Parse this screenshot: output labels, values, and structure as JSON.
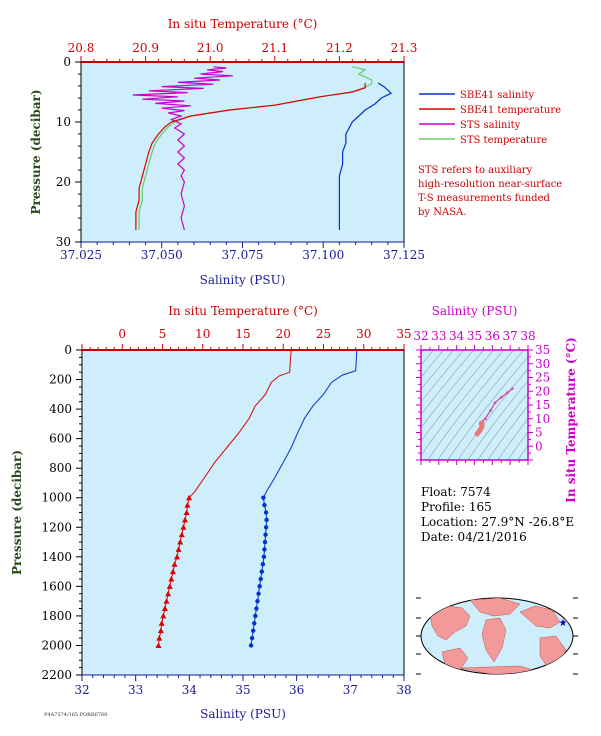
{
  "colors": {
    "plot_bg": "#cdeefa",
    "salinity_axis": "#1a1a99",
    "temperature_axis": "#cc0000",
    "pressure_axis": "#2a4a1a",
    "ts_axis": "#cc00cc",
    "sbe_salinity": "#0033cc",
    "sbe_temperature": "#dd0000",
    "sts_salinity": "#cc00cc",
    "sts_temperature": "#66cc66"
  },
  "footer": {
    "code": "P4A7574/165 PORB6768"
  },
  "info": {
    "float": "Float:  7574",
    "profile": "Profile:  165",
    "location": "Location:  27.9°N  -26.8°E",
    "date": "Date:  04/21/2016"
  },
  "legend": {
    "items": [
      {
        "label": "SBE41 salinity",
        "color": "#0033cc"
      },
      {
        "label": "SBE41 temperature",
        "color": "#dd0000"
      },
      {
        "label": "STS salinity",
        "color": "#cc00cc"
      },
      {
        "label": "STS temperature",
        "color": "#66cc66"
      }
    ],
    "note": [
      "STS refers to auxiliary",
      "high-resolution near-surface",
      "T-S measurements funded",
      "by NASA."
    ]
  },
  "chart_data": [
    {
      "id": "near-surface",
      "type": "line",
      "title": "",
      "top_axis_label": "In situ Temperature (°C)",
      "bottom_axis_label": "Salinity (PSU)",
      "left_axis_label": "Pressure (decibar)",
      "temperature_range": [
        20.8,
        21.3
      ],
      "temperature_ticks": [
        "20.8",
        "20.9",
        "21.0",
        "21.1",
        "21.2",
        "21.3"
      ],
      "salinity_range": [
        37.025,
        37.125
      ],
      "salinity_ticks": [
        "37.025",
        "37.050",
        "37.075",
        "37.100",
        "37.125"
      ],
      "pressure_range": [
        0,
        30
      ],
      "pressure_ticks": [
        "0",
        "10",
        "20",
        "30"
      ],
      "series": [
        {
          "name": "SBE41 salinity",
          "axis": "salinity",
          "points": [
            [
              37.117,
              3.5
            ],
            [
              37.119,
              4.2
            ],
            [
              37.121,
              5.2
            ],
            [
              37.118,
              6.0
            ],
            [
              37.116,
              7.0
            ],
            [
              37.113,
              8.0
            ],
            [
              37.111,
              9.0
            ],
            [
              37.109,
              10.0
            ],
            [
              37.108,
              11.0
            ],
            [
              37.107,
              12.0
            ],
            [
              37.107,
              13.5
            ],
            [
              37.106,
              15.0
            ],
            [
              37.106,
              17.0
            ],
            [
              37.105,
              19.0
            ],
            [
              37.105,
              21.0
            ],
            [
              37.105,
              23.0
            ],
            [
              37.105,
              25.0
            ],
            [
              37.105,
              27.0
            ],
            [
              37.105,
              28.0
            ]
          ]
        },
        {
          "name": "SBE41 temperature",
          "axis": "temperature",
          "points": [
            [
              21.24,
              3.5
            ],
            [
              21.24,
              4.3
            ],
            [
              21.22,
              5.0
            ],
            [
              21.17,
              5.8
            ],
            [
              21.14,
              6.4
            ],
            [
              21.1,
              7.2
            ],
            [
              21.03,
              8.0
            ],
            [
              20.97,
              9.0
            ],
            [
              20.94,
              10.0
            ],
            [
              20.93,
              10.8
            ],
            [
              20.92,
              12.0
            ],
            [
              20.91,
              13.5
            ],
            [
              20.905,
              15.0
            ],
            [
              20.9,
              17.0
            ],
            [
              20.895,
              19.0
            ],
            [
              20.89,
              21.0
            ],
            [
              20.89,
              23.0
            ],
            [
              20.885,
              25.0
            ],
            [
              20.885,
              27.0
            ],
            [
              20.885,
              28.0
            ]
          ]
        },
        {
          "name": "STS salinity",
          "axis": "salinity",
          "points": [
            [
              37.066,
              0.8
            ],
            [
              37.07,
              1.0
            ],
            [
              37.064,
              1.3
            ],
            [
              37.069,
              1.6
            ],
            [
              37.062,
              2.0
            ],
            [
              37.072,
              2.3
            ],
            [
              37.06,
              2.7
            ],
            [
              37.068,
              3.0
            ],
            [
              37.055,
              3.4
            ],
            [
              37.066,
              3.7
            ],
            [
              37.05,
              4.1
            ],
            [
              37.063,
              4.4
            ],
            [
              37.046,
              4.8
            ],
            [
              37.058,
              5.1
            ],
            [
              37.041,
              5.5
            ],
            [
              37.055,
              5.8
            ],
            [
              37.044,
              6.2
            ],
            [
              37.057,
              6.5
            ],
            [
              37.048,
              6.9
            ],
            [
              37.059,
              7.3
            ],
            [
              37.05,
              7.7
            ],
            [
              37.057,
              8.1
            ],
            [
              37.052,
              8.5
            ],
            [
              37.056,
              9.0
            ],
            [
              37.053,
              9.6
            ],
            [
              37.056,
              10.3
            ],
            [
              37.054,
              11.0
            ],
            [
              37.057,
              12.0
            ],
            [
              37.055,
              13.0
            ],
            [
              37.057,
              14.0
            ],
            [
              37.055,
              15.0
            ],
            [
              37.057,
              16.0
            ],
            [
              37.055,
              17.0
            ],
            [
              37.057,
              18.0
            ],
            [
              37.056,
              19.0
            ],
            [
              37.057,
              20.0
            ],
            [
              37.056,
              22.0
            ],
            [
              37.057,
              24.0
            ],
            [
              37.056,
              26.0
            ],
            [
              37.057,
              28.0
            ]
          ]
        },
        {
          "name": "STS temperature",
          "axis": "temperature",
          "points": [
            [
              21.22,
              0.8
            ],
            [
              21.24,
              1.3
            ],
            [
              21.23,
              2.0
            ],
            [
              21.24,
              2.5
            ],
            [
              21.25,
              3.0
            ],
            [
              21.25,
              3.6
            ],
            [
              21.24,
              4.2
            ],
            [
              21.22,
              5.0
            ],
            [
              21.17,
              5.8
            ],
            [
              21.14,
              6.4
            ],
            [
              21.1,
              7.2
            ],
            [
              21.03,
              8.0
            ],
            [
              20.97,
              9.0
            ],
            [
              20.945,
              10.0
            ],
            [
              20.935,
              10.8
            ],
            [
              20.925,
              12.0
            ],
            [
              20.915,
              13.5
            ],
            [
              20.91,
              15.0
            ],
            [
              20.905,
              17.0
            ],
            [
              20.9,
              19.0
            ],
            [
              20.895,
              21.0
            ],
            [
              20.895,
              23.0
            ],
            [
              20.89,
              25.0
            ],
            [
              20.89,
              27.0
            ],
            [
              20.89,
              28.0
            ]
          ]
        }
      ]
    },
    {
      "id": "full-profile",
      "type": "line",
      "title": "",
      "top_axis_label": "In situ Temperature (°C)",
      "bottom_axis_label": "Salinity (PSU)",
      "left_axis_label": "Pressure (decibar)",
      "temperature_range": [
        -5,
        35
      ],
      "temperature_ticks": [
        "0",
        "5",
        "10",
        "15",
        "20",
        "25",
        "30",
        "35"
      ],
      "temperature_tick_values": [
        0,
        5,
        10,
        15,
        20,
        25,
        30,
        35
      ],
      "salinity_range": [
        32,
        38
      ],
      "salinity_ticks": [
        "32",
        "33",
        "34",
        "35",
        "36",
        "37",
        "38"
      ],
      "pressure_range": [
        0,
        2200
      ],
      "pressure_ticks": [
        "0",
        "200",
        "400",
        "600",
        "800",
        "1000",
        "1200",
        "1400",
        "1600",
        "1800",
        "2000",
        "2200"
      ],
      "series": [
        {
          "name": "SBE41 temperature",
          "axis": "temperature",
          "points": [
            [
              21.0,
              0
            ],
            [
              20.9,
              50
            ],
            [
              20.8,
              150
            ],
            [
              19.5,
              175
            ],
            [
              18.5,
              220
            ],
            [
              17.8,
              300
            ],
            [
              16.5,
              380
            ],
            [
              15.8,
              460
            ],
            [
              14.5,
              560
            ],
            [
              13.0,
              660
            ],
            [
              11.5,
              760
            ],
            [
              10.0,
              880
            ],
            [
              9.0,
              960
            ],
            [
              8.3,
              1000
            ],
            [
              8.1,
              1050
            ],
            [
              8.0,
              1100
            ],
            [
              7.8,
              1150
            ],
            [
              7.6,
              1200
            ],
            [
              7.4,
              1250
            ],
            [
              7.2,
              1300
            ],
            [
              7.0,
              1350
            ],
            [
              6.8,
              1400
            ],
            [
              6.5,
              1450
            ],
            [
              6.3,
              1500
            ],
            [
              6.1,
              1550
            ],
            [
              5.9,
              1600
            ],
            [
              5.7,
              1650
            ],
            [
              5.5,
              1700
            ],
            [
              5.3,
              1750
            ],
            [
              5.1,
              1800
            ],
            [
              4.9,
              1850
            ],
            [
              4.8,
              1900
            ],
            [
              4.6,
              1950
            ],
            [
              4.5,
              2000
            ]
          ],
          "markers_from_pressure": 1000
        },
        {
          "name": "SBE41 salinity",
          "axis": "salinity",
          "points": [
            [
              37.12,
              0
            ],
            [
              37.11,
              80
            ],
            [
              37.1,
              140
            ],
            [
              36.85,
              170
            ],
            [
              36.65,
              220
            ],
            [
              36.5,
              300
            ],
            [
              36.3,
              380
            ],
            [
              36.15,
              460
            ],
            [
              36.02,
              560
            ],
            [
              35.9,
              660
            ],
            [
              35.75,
              760
            ],
            [
              35.6,
              860
            ],
            [
              35.45,
              950
            ],
            [
              35.38,
              1000
            ],
            [
              35.4,
              1050
            ],
            [
              35.43,
              1100
            ],
            [
              35.44,
              1150
            ],
            [
              35.43,
              1200
            ],
            [
              35.42,
              1250
            ],
            [
              35.41,
              1300
            ],
            [
              35.4,
              1350
            ],
            [
              35.39,
              1400
            ],
            [
              35.37,
              1450
            ],
            [
              35.35,
              1500
            ],
            [
              35.33,
              1550
            ],
            [
              35.31,
              1600
            ],
            [
              35.29,
              1650
            ],
            [
              35.27,
              1700
            ],
            [
              35.25,
              1750
            ],
            [
              35.23,
              1800
            ],
            [
              35.21,
              1850
            ],
            [
              35.19,
              1900
            ],
            [
              35.17,
              1950
            ],
            [
              35.15,
              2000
            ]
          ],
          "markers_from_pressure": 1000
        }
      ]
    },
    {
      "id": "ts-diagram",
      "type": "scatter",
      "title": "",
      "top_axis_label": "Salinity (PSU)",
      "right_axis_label": "In situ Temperature (°C)",
      "salinity_range": [
        32,
        38
      ],
      "salinity_ticks": [
        "32",
        "33",
        "34",
        "35",
        "36",
        "37",
        "38"
      ],
      "temperature_range": [
        -5,
        35
      ],
      "temperature_ticks": [
        "0",
        "5",
        "10",
        "15",
        "20",
        "25",
        "30",
        "35"
      ],
      "series": [
        {
          "name": "T-S profile",
          "points": [
            [
              37.12,
              21.0
            ],
            [
              36.85,
              19.5
            ],
            [
              36.5,
              17.8
            ],
            [
              36.15,
              15.8
            ],
            [
              35.9,
              13.0
            ],
            [
              35.6,
              10.0
            ],
            [
              35.45,
              9.0
            ],
            [
              35.38,
              8.3
            ],
            [
              35.43,
              7.8
            ],
            [
              35.41,
              7.2
            ],
            [
              35.37,
              6.5
            ],
            [
              35.31,
              5.9
            ],
            [
              35.25,
              5.3
            ],
            [
              35.19,
              4.8
            ],
            [
              35.15,
              4.5
            ]
          ]
        }
      ]
    }
  ]
}
